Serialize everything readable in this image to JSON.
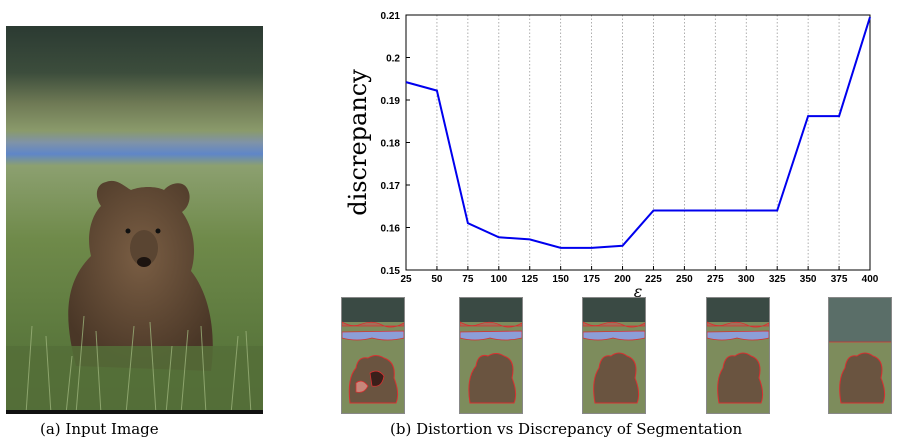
{
  "captions": {
    "a": "(a) Input Image",
    "b": "(b) Distortion vs Discrepancy of Segmentation"
  },
  "chart_data": {
    "type": "line",
    "title": "",
    "xlabel": "ε",
    "ylabel": "discrepancy",
    "xlim": [
      25,
      400
    ],
    "ylim": [
      0.15,
      0.21
    ],
    "grid": "vertical dotted",
    "x_ticks": [
      25,
      50,
      75,
      100,
      125,
      150,
      175,
      200,
      225,
      250,
      275,
      300,
      325,
      350,
      375,
      400
    ],
    "y_ticks": [
      0.15,
      0.16,
      0.17,
      0.18,
      0.19,
      0.2,
      0.21
    ],
    "y_tick_labels": [
      "0.15",
      "0.16",
      "0.17",
      "0.18",
      "0.19",
      "0.2",
      "0.21"
    ],
    "series": [
      {
        "color": "#0000ee",
        "x": [
          25,
          50,
          75,
          100,
          125,
          150,
          175,
          200,
          225,
          250,
          275,
          300,
          325,
          350,
          375,
          400
        ],
        "y": [
          0.1942,
          0.1922,
          0.161,
          0.1577,
          0.1572,
          0.1552,
          0.1552,
          0.1557,
          0.164,
          0.164,
          0.164,
          0.164,
          0.164,
          0.1862,
          0.1862,
          0.2095
        ]
      }
    ]
  },
  "colors": {
    "line": "#0000ee",
    "grass": "#7d8c5c",
    "sky": "#3a4a44",
    "water": "#8c9ed8",
    "bear": "#6a5440",
    "outline": "#d83030"
  }
}
